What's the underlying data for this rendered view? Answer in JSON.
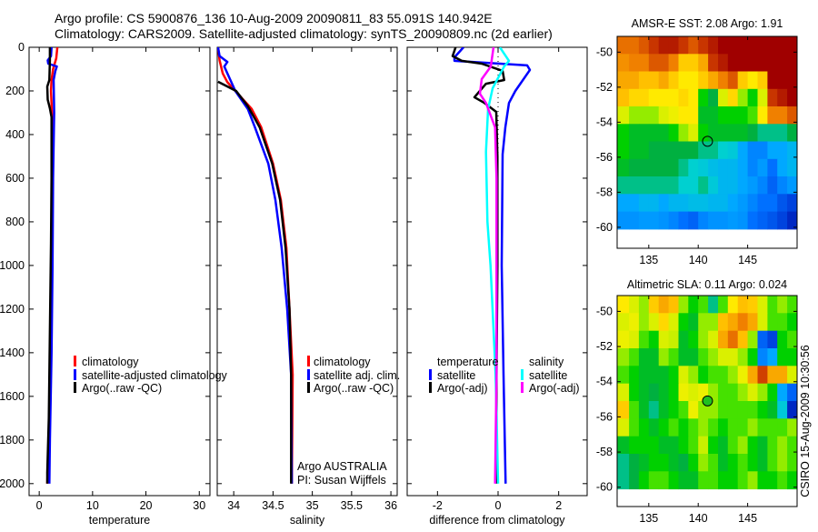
{
  "title": {
    "line1": "Argo profile: CS 5900876_136 10-Aug-2009 20090811_83 55.091S 140.942E",
    "line2": "Climatology: CARS2009. Satellite-adjusted climatology: synTS_20090809.nc (2d earlier)"
  },
  "credit": {
    "argo": "Argo AUSTRALIA",
    "pi": "PI: Susan Wijffels",
    "stamp": "CSIRO 15-Aug-2009 10:30:56"
  },
  "colors": {
    "clim": "#ff0000",
    "sat": "#0000ff",
    "argo": "#000000",
    "sal_sat": "#00ffff",
    "sal_argo": "#ff00ff"
  },
  "chart_data": [
    {
      "type": "line",
      "id": "temperature",
      "xlabel": "temperature",
      "ylabel": "",
      "xlim": [
        -1.9,
        32
      ],
      "ylim": [
        2055,
        0
      ],
      "xticks": [
        0,
        10,
        20,
        30
      ],
      "yticks": [
        0,
        200,
        400,
        600,
        800,
        1000,
        1200,
        1400,
        1600,
        1800,
        2000
      ],
      "legend": [
        "climatology",
        "satellite-adjusted climatology",
        "Argo(..raw -QC)"
      ],
      "series": [
        {
          "name": "climatology",
          "color": "#ff0000",
          "points": [
            [
              0,
              3.4
            ],
            [
              50,
              3.2
            ],
            [
              100,
              2.6
            ],
            [
              150,
              2.3
            ],
            [
              200,
              2.2
            ],
            [
              300,
              2.4
            ],
            [
              500,
              2.4
            ],
            [
              1000,
              2.3
            ],
            [
              1400,
              2.1
            ],
            [
              1800,
              1.8
            ],
            [
              2000,
              1.5
            ]
          ]
        },
        {
          "name": "satellite-adjusted climatology",
          "color": "#0000ff",
          "points": [
            [
              0,
              2.3
            ],
            [
              40,
              2.2
            ],
            [
              60,
              1.6
            ],
            [
              75,
              1.7
            ],
            [
              88,
              3.3
            ],
            [
              110,
              3.0
            ],
            [
              150,
              2.7
            ],
            [
              300,
              2.8
            ],
            [
              600,
              2.6
            ],
            [
              1000,
              2.5
            ],
            [
              1400,
              2.3
            ],
            [
              1800,
              2.0
            ],
            [
              2000,
              1.9
            ]
          ]
        },
        {
          "name": "Argo(..raw -QC)",
          "color": "#000000",
          "points": [
            [
              0,
              2.0
            ],
            [
              60,
              2.0
            ],
            [
              150,
              1.9
            ],
            [
              180,
              1.5
            ],
            [
              240,
              1.6
            ],
            [
              280,
              2.0
            ],
            [
              320,
              2.3
            ],
            [
              600,
              2.3
            ],
            [
              900,
              2.2
            ],
            [
              1300,
              2.0
            ],
            [
              1700,
              1.8
            ],
            [
              1950,
              1.5
            ],
            [
              2000,
              1.5
            ]
          ]
        }
      ]
    },
    {
      "type": "line",
      "id": "salinity",
      "xlabel": "salinity",
      "xlim": [
        33.79,
        36.08
      ],
      "ylim": [
        2055,
        0
      ],
      "xticks": [
        34,
        34.5,
        35,
        35.5,
        36
      ],
      "legend": [
        "climatology",
        "satellite adj. clim.",
        "Argo(..raw -QC)"
      ],
      "series": [
        {
          "name": "climatology",
          "color": "#ff0000",
          "points": [
            [
              0,
              33.8
            ],
            [
              60,
              33.82
            ],
            [
              120,
              33.86
            ],
            [
              160,
              33.92
            ],
            [
              200,
              34.02
            ],
            [
              283,
              34.23
            ],
            [
              367,
              34.35
            ],
            [
              533,
              34.5
            ],
            [
              700,
              34.6
            ],
            [
              920,
              34.67
            ],
            [
              1200,
              34.71
            ],
            [
              1500,
              34.75
            ],
            [
              2000,
              34.74
            ]
          ]
        },
        {
          "name": "satellite adj. clim.",
          "color": "#0000ff",
          "points": [
            [
              0,
              33.8
            ],
            [
              40,
              33.82
            ],
            [
              67,
              33.92
            ],
            [
              88,
              33.88
            ],
            [
              120,
              33.92
            ],
            [
              200,
              34.02
            ],
            [
              283,
              34.18
            ],
            [
              367,
              34.27
            ],
            [
              533,
              34.44
            ],
            [
              700,
              34.53
            ],
            [
              920,
              34.61
            ],
            [
              1200,
              34.68
            ],
            [
              1500,
              34.73
            ],
            [
              2000,
              34.74
            ]
          ]
        },
        {
          "name": "Argo(..raw -QC)",
          "color": "#000000",
          "points": [
            [
              158,
              33.8
            ],
            [
              200,
              34.03
            ],
            [
              270,
              34.18
            ],
            [
              367,
              34.33
            ],
            [
              533,
              34.49
            ],
            [
              700,
              34.59
            ],
            [
              920,
              34.66
            ],
            [
              1200,
              34.71
            ],
            [
              1500,
              34.73
            ],
            [
              2000,
              34.73
            ]
          ]
        }
      ]
    },
    {
      "type": "line",
      "id": "difference",
      "xlabel": "difference from climatology",
      "xlim": [
        -3.0,
        2.94
      ],
      "ylim": [
        2055,
        0
      ],
      "xticks": [
        -2,
        0,
        2
      ],
      "legend_headers": [
        "temperature",
        "salinity"
      ],
      "legend": [
        "satellite",
        "Argo(-adj)",
        "satellite",
        "Argo(-adj)"
      ],
      "series": [
        {
          "name": "temperature satellite",
          "color": "#0000ff",
          "points": [
            [
              0,
              -1.14
            ],
            [
              46,
              -1.44
            ],
            [
              62,
              -1.44
            ],
            [
              83,
              0.96
            ],
            [
              104,
              1.05
            ],
            [
              200,
              0.57
            ],
            [
              255,
              0.36
            ],
            [
              367,
              0.24
            ],
            [
              490,
              0.15
            ],
            [
              1000,
              0.12
            ],
            [
              1500,
              0.18
            ],
            [
              2000,
              0.25
            ]
          ]
        },
        {
          "name": "temperature Argo(-adj)",
          "color": "#000000",
          "points": [
            [
              0,
              -1.4
            ],
            [
              40,
              -1.5
            ],
            [
              62,
              -1.2
            ],
            [
              75,
              -0.54
            ],
            [
              108,
              0.15
            ],
            [
              150,
              0.2
            ],
            [
              167,
              -0.4
            ],
            [
              229,
              -0.78
            ],
            [
              255,
              -0.45
            ],
            [
              296,
              -0.06
            ],
            [
              500,
              -0.02
            ],
            [
              1000,
              -0.02
            ],
            [
              1500,
              -0.05
            ],
            [
              2000,
              -0.05
            ]
          ]
        },
        {
          "name": "salinity satellite",
          "color": "#00ffff",
          "points": [
            [
              0,
              0.06
            ],
            [
              62,
              0.36
            ],
            [
              88,
              0.2
            ],
            [
              188,
              -0.18
            ],
            [
              283,
              -0.33
            ],
            [
              479,
              -0.4
            ],
            [
              800,
              -0.35
            ],
            [
              1000,
              -0.25
            ],
            [
              1500,
              -0.08
            ],
            [
              2000,
              0.0
            ]
          ]
        },
        {
          "name": "salinity Argo(-adj)",
          "color": "#ff00ff",
          "points": [
            [
              0,
              -0.15
            ],
            [
              88,
              -0.24
            ],
            [
              146,
              -0.54
            ],
            [
              213,
              -0.6
            ],
            [
              255,
              -0.4
            ],
            [
              367,
              -0.1
            ],
            [
              600,
              -0.05
            ],
            [
              1000,
              -0.05
            ],
            [
              1500,
              -0.05
            ],
            [
              2000,
              -0.1
            ]
          ]
        }
      ]
    },
    {
      "type": "heatmap",
      "id": "sst_map",
      "title": "AMSR-E SST: 2.08 Argo: 1.91",
      "xlim": [
        131.8,
        150
      ],
      "ylim": [
        -61.2,
        -49.1
      ],
      "xticks": [
        135,
        140,
        145
      ],
      "yticks": [
        -50,
        -52,
        -54,
        -56,
        -58,
        -60
      ],
      "grid_lon0": 132,
      "grid_lat0": -49.1,
      "cell_deg": 1,
      "marker": {
        "lon": 140.942,
        "lat": -55.091
      },
      "values": [
        [
          0.82,
          0.82,
          0.85,
          0.9,
          0.95,
          0.95,
          0.9,
          0.85,
          0.9,
          0.95,
          1,
          1,
          1,
          1,
          1,
          1,
          1,
          1
        ],
        [
          0.78,
          0.8,
          0.8,
          0.85,
          0.85,
          0.8,
          0.7,
          0.7,
          0.75,
          0.9,
          0.95,
          1,
          1,
          1,
          1,
          1,
          1,
          1
        ],
        [
          0.75,
          0.75,
          0.72,
          0.72,
          0.75,
          0.7,
          0.65,
          0.65,
          0.7,
          0.75,
          0.8,
          0.85,
          0.7,
          0.65,
          0.7,
          1,
          1,
          1
        ],
        [
          0.72,
          0.68,
          0.68,
          0.65,
          0.65,
          0.65,
          0.68,
          0.65,
          0.45,
          0.4,
          0.6,
          0.68,
          0.55,
          0.45,
          0.6,
          0.9,
          0.95,
          1
        ],
        [
          0.6,
          0.55,
          0.55,
          0.55,
          0.6,
          0.62,
          0.65,
          0.65,
          0.42,
          0.42,
          0.45,
          0.45,
          0.45,
          0.5,
          0.65,
          0.8,
          0.8,
          0.85
        ],
        [
          0.45,
          0.42,
          0.42,
          0.42,
          0.42,
          0.45,
          0.55,
          0.6,
          0.45,
          0.42,
          0.42,
          0.42,
          0.42,
          0.4,
          0.38,
          0.38,
          0.38,
          0.4
        ],
        [
          0.45,
          0.42,
          0.42,
          0.4,
          0.4,
          0.4,
          0.4,
          0.4,
          0.38,
          0.38,
          0.36,
          0.35,
          0.3,
          0.25,
          0.25,
          0.3,
          0.3,
          0.32
        ],
        [
          0.42,
          0.4,
          0.4,
          0.4,
          0.4,
          0.4,
          0.38,
          0.36,
          0.35,
          0.33,
          0.32,
          0.32,
          0.3,
          0.25,
          0.28,
          0.22,
          0.3,
          0.32
        ],
        [
          0.38,
          0.38,
          0.38,
          0.38,
          0.38,
          0.38,
          0.36,
          0.36,
          0.38,
          0.35,
          0.32,
          0.32,
          0.3,
          0.28,
          0.25,
          0.2,
          0.25,
          0.28
        ],
        [
          0.3,
          0.3,
          0.32,
          0.32,
          0.3,
          0.32,
          0.32,
          0.33,
          0.33,
          0.32,
          0.32,
          0.3,
          0.28,
          0.25,
          0.22,
          0.22,
          0.18,
          0.15
        ],
        [
          0.27,
          0.27,
          0.28,
          0.28,
          0.27,
          0.25,
          0.22,
          0.2,
          0.25,
          0.27,
          0.27,
          0.28,
          0.27,
          0.22,
          0.2,
          0.18,
          0.15,
          0.1
        ]
      ]
    },
    {
      "type": "heatmap",
      "id": "sla_map",
      "title": "Altimetric SLA: 0.11 Argo: 0.024",
      "xlim": [
        131.8,
        150
      ],
      "ylim": [
        -61.1,
        -49.1
      ],
      "xticks": [
        135,
        140,
        145
      ],
      "yticks": [
        -50,
        -52,
        -54,
        -56,
        -58,
        -60
      ],
      "grid_lon0": 132,
      "grid_lat0": -49.1,
      "cell_deg": 1,
      "marker": {
        "lon": 140.942,
        "lat": -55.091
      },
      "values": [
        [
          0.65,
          0.6,
          0.55,
          0.7,
          0.75,
          0.72,
          0.55,
          0.45,
          0.5,
          0.38,
          0.5,
          0.65,
          0.72,
          0.7,
          0.6,
          0.5,
          0.55,
          0.5
        ],
        [
          0.6,
          0.62,
          0.55,
          0.6,
          0.68,
          0.6,
          0.45,
          0.42,
          0.55,
          0.55,
          0.72,
          0.75,
          0.8,
          0.75,
          0.6,
          0.5,
          0.5,
          0.45
        ],
        [
          0.62,
          0.6,
          0.5,
          0.45,
          0.6,
          0.58,
          0.42,
          0.45,
          0.55,
          0.6,
          0.75,
          0.82,
          0.72,
          0.55,
          0.2,
          0.15,
          0.45,
          0.5
        ],
        [
          0.55,
          0.5,
          0.42,
          0.42,
          0.55,
          0.5,
          0.42,
          0.42,
          0.5,
          0.55,
          0.6,
          0.6,
          0.55,
          0.45,
          0.25,
          0.3,
          0.45,
          0.45
        ],
        [
          0.5,
          0.45,
          0.42,
          0.42,
          0.42,
          0.45,
          0.6,
          0.55,
          0.45,
          0.5,
          0.5,
          0.55,
          0.62,
          0.75,
          0.88,
          0.75,
          0.75,
          0.6
        ],
        [
          0.6,
          0.45,
          0.42,
          0.4,
          0.42,
          0.45,
          0.62,
          0.6,
          0.62,
          0.55,
          0.5,
          0.5,
          0.55,
          0.6,
          0.55,
          0.45,
          0.3,
          0.2
        ],
        [
          0.7,
          0.5,
          0.42,
          0.38,
          0.42,
          0.45,
          0.5,
          0.62,
          0.55,
          0.55,
          0.5,
          0.5,
          0.5,
          0.5,
          0.45,
          0.42,
          0.35,
          0.1
        ],
        [
          0.6,
          0.5,
          0.45,
          0.42,
          0.45,
          0.5,
          0.45,
          0.5,
          0.55,
          0.5,
          0.45,
          0.5,
          0.5,
          0.55,
          0.5,
          0.5,
          0.5,
          0.55
        ],
        [
          0.42,
          0.45,
          0.45,
          0.45,
          0.42,
          0.42,
          0.45,
          0.5,
          0.58,
          0.45,
          0.42,
          0.5,
          0.55,
          0.45,
          0.42,
          0.5,
          0.55,
          0.5
        ],
        [
          0.38,
          0.4,
          0.42,
          0.45,
          0.45,
          0.42,
          0.4,
          0.45,
          0.55,
          0.5,
          0.42,
          0.45,
          0.5,
          0.45,
          0.42,
          0.5,
          0.55,
          0.5
        ],
        [
          0.38,
          0.4,
          0.45,
          0.5,
          0.5,
          0.45,
          0.42,
          0.42,
          0.5,
          0.5,
          0.45,
          0.45,
          0.5,
          0.55,
          0.45,
          0.45,
          0.5,
          0.45
        ]
      ]
    }
  ]
}
